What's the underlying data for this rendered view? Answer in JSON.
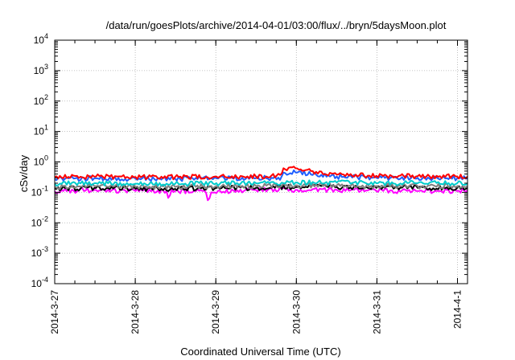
{
  "chart_data": {
    "type": "line",
    "title": "/data/run/goesPlots/archive/2014-04-01/03:00/flux/../bryn/5daysMoon.plot",
    "xlabel": "Coordinated Universal Time (UTC)",
    "ylabel": "cSv/day",
    "y_scale": "log",
    "ylim": [
      0.0001,
      10000
    ],
    "xlim": [
      "2014-03-27 00:00",
      "2014-04-01 03:00"
    ],
    "grid": true,
    "legend": "none",
    "x_ticks": [
      {
        "date": "2014-03-27",
        "label": "2014-3-27"
      },
      {
        "date": "2014-03-28",
        "label": "2014-3-28"
      },
      {
        "date": "2014-03-29",
        "label": "2014-3-29"
      },
      {
        "date": "2014-03-30",
        "label": "2014-3-30"
      },
      {
        "date": "2014-03-31",
        "label": "2014-3-31"
      },
      {
        "date": "2014-04-01",
        "label": "2014-4-1"
      }
    ],
    "y_ticks": [
      {
        "value": 0.0001,
        "base": "10",
        "exp": "-4"
      },
      {
        "value": 0.001,
        "base": "10",
        "exp": "-3"
      },
      {
        "value": 0.01,
        "base": "10",
        "exp": "-2"
      },
      {
        "value": 0.1,
        "base": "10",
        "exp": "-1"
      },
      {
        "value": 1,
        "base": "10",
        "exp": "0"
      },
      {
        "value": 10,
        "base": "10",
        "exp": "1"
      },
      {
        "value": 100,
        "base": "10",
        "exp": "2"
      },
      {
        "value": 1000,
        "base": "10",
        "exp": "3"
      },
      {
        "value": 10000,
        "base": "10",
        "exp": "4"
      }
    ],
    "series": [
      {
        "color": "#ff00ff",
        "x": [
          "2014-03-27 00:00",
          "2014-03-27 12:00",
          "2014-03-28 00:00",
          "2014-03-28 09:30",
          "2014-03-28 10:00",
          "2014-03-28 10:30",
          "2014-03-28 12:00",
          "2014-03-28 21:00",
          "2014-03-28 21:30",
          "2014-03-28 22:00",
          "2014-03-28 22:30",
          "2014-03-29 12:00",
          "2014-03-30 00:00",
          "2014-03-30 12:00",
          "2014-03-31 00:00",
          "2014-03-31 12:00",
          "2014-04-01 00:00",
          "2014-04-01 03:00"
        ],
        "y": [
          0.11,
          0.12,
          0.11,
          0.11,
          0.05,
          0.1,
          0.11,
          0.11,
          0.055,
          0.055,
          0.1,
          0.12,
          0.12,
          0.12,
          0.11,
          0.11,
          0.11,
          0.12
        ]
      },
      {
        "color": "#000000",
        "x": [
          "2014-03-27 00:00",
          "2014-03-27 12:00",
          "2014-03-28 00:00",
          "2014-03-28 12:00",
          "2014-03-29 00:00",
          "2014-03-29 12:00",
          "2014-03-30 00:00",
          "2014-03-30 12:00",
          "2014-03-31 00:00",
          "2014-03-31 12:00",
          "2014-04-01 00:00",
          "2014-04-01 03:00"
        ],
        "y": [
          0.13,
          0.14,
          0.13,
          0.13,
          0.14,
          0.14,
          0.15,
          0.15,
          0.14,
          0.14,
          0.14,
          0.14
        ]
      },
      {
        "color": "#7f7f7f",
        "x": [
          "2014-03-27 00:00",
          "2014-03-27 12:00",
          "2014-03-28 00:00",
          "2014-03-28 12:00",
          "2014-03-29 00:00",
          "2014-03-29 12:00",
          "2014-03-30 00:00",
          "2014-03-30 12:00",
          "2014-03-31 00:00",
          "2014-03-31 12:00",
          "2014-04-01 00:00",
          "2014-04-01 03:00"
        ],
        "y": [
          0.15,
          0.16,
          0.15,
          0.15,
          0.16,
          0.16,
          0.17,
          0.17,
          0.16,
          0.16,
          0.16,
          0.16
        ]
      },
      {
        "color": "#00cccc",
        "x": [
          "2014-03-27 00:00",
          "2014-03-27 12:00",
          "2014-03-28 00:00",
          "2014-03-28 12:00",
          "2014-03-29 00:00",
          "2014-03-29 12:00",
          "2014-03-30 00:00",
          "2014-03-30 12:00",
          "2014-03-31 00:00",
          "2014-03-31 12:00",
          "2014-04-01 00:00",
          "2014-04-01 03:00"
        ],
        "y": [
          0.19,
          0.2,
          0.19,
          0.19,
          0.2,
          0.2,
          0.21,
          0.21,
          0.2,
          0.2,
          0.2,
          0.2
        ]
      },
      {
        "color": "#1f5fff",
        "x": [
          "2014-03-27 00:00",
          "2014-03-27 12:00",
          "2014-03-28 00:00",
          "2014-03-28 12:00",
          "2014-03-29 00:00",
          "2014-03-29 12:00",
          "2014-03-29 19:30",
          "2014-03-29 20:00",
          "2014-03-30 00:00",
          "2014-03-30 06:00",
          "2014-03-30 12:00",
          "2014-03-31 00:00",
          "2014-03-31 12:00",
          "2014-04-01 00:00",
          "2014-04-01 03:00"
        ],
        "y": [
          0.27,
          0.29,
          0.28,
          0.28,
          0.29,
          0.29,
          0.3,
          0.45,
          0.45,
          0.38,
          0.33,
          0.3,
          0.3,
          0.29,
          0.29
        ]
      },
      {
        "color": "#ff0000",
        "x": [
          "2014-03-27 00:00",
          "2014-03-27 12:00",
          "2014-03-28 00:00",
          "2014-03-28 12:00",
          "2014-03-29 00:00",
          "2014-03-29 12:00",
          "2014-03-29 19:30",
          "2014-03-29 20:00",
          "2014-03-30 00:00",
          "2014-03-30 06:00",
          "2014-03-30 12:00",
          "2014-03-31 00:00",
          "2014-03-31 12:00",
          "2014-04-01 00:00",
          "2014-04-01 03:00"
        ],
        "y": [
          0.31,
          0.33,
          0.32,
          0.32,
          0.33,
          0.33,
          0.35,
          0.62,
          0.62,
          0.47,
          0.38,
          0.35,
          0.34,
          0.33,
          0.33
        ]
      }
    ]
  }
}
